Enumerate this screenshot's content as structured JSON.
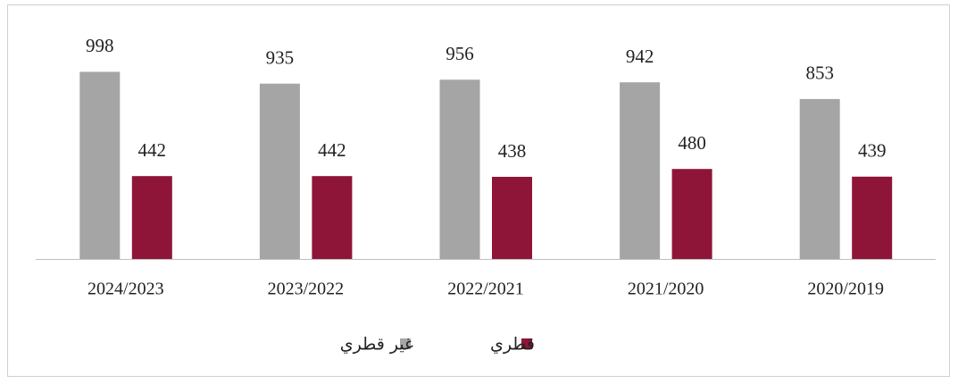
{
  "chart_data": {
    "type": "bar",
    "categories": [
      "2024/2023",
      "2023/2022",
      "2022/2021",
      "2021/2020",
      "2020/2019"
    ],
    "series": [
      {
        "name": "غير قطري",
        "color": "#a5a5a5",
        "values": [
          998,
          935,
          956,
          942,
          853
        ]
      },
      {
        "name": "قطري",
        "color": "#8e1537",
        "values": [
          442,
          442,
          438,
          480,
          439
        ]
      }
    ],
    "ylim": [
      0,
      1000
    ],
    "legend": "bottom"
  }
}
